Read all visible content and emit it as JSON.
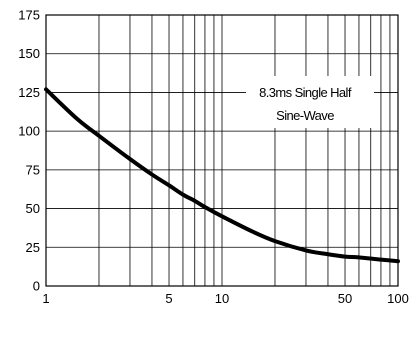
{
  "chart_data": {
    "type": "line",
    "title": "",
    "xlabel": "",
    "ylabel": "",
    "x_scale": "log",
    "xlim": [
      1,
      100
    ],
    "ylim": [
      0,
      175
    ],
    "grid": true,
    "x_ticks": [
      1,
      5,
      10,
      50,
      100
    ],
    "x_tick_labels": [
      "1",
      "5",
      "10",
      "50",
      "100"
    ],
    "x_minor_grid": [
      2,
      3,
      4,
      5,
      6,
      7,
      8,
      9,
      10,
      20,
      30,
      40,
      50,
      60,
      70,
      80,
      90
    ],
    "y_ticks": [
      0,
      25,
      50,
      75,
      100,
      125,
      150,
      175
    ],
    "y_tick_labels": [
      "0",
      "25",
      "50",
      "75",
      "100",
      "125",
      "150",
      "175"
    ],
    "annotation": {
      "lines": [
        "8.3ms Single Half",
        "Sine-Wave"
      ]
    },
    "series": [
      {
        "x": [
          1,
          1.5,
          2,
          3,
          4,
          5,
          6,
          7,
          8,
          10,
          15,
          20,
          30,
          40,
          50,
          60,
          80,
          100
        ],
        "y": [
          127,
          108,
          97,
          82,
          72,
          65,
          59,
          55,
          51,
          45,
          35,
          29,
          23,
          20.5,
          19,
          18.5,
          17,
          16
        ]
      }
    ],
    "colors": {
      "line": "#000000",
      "grid": "#000000",
      "background": "#ffffff"
    }
  }
}
